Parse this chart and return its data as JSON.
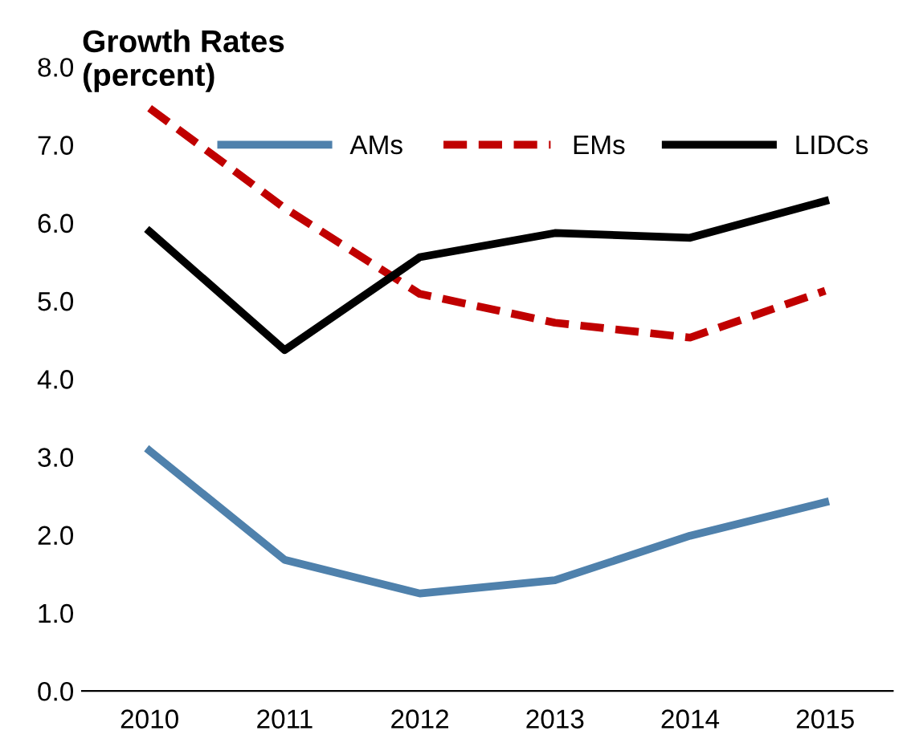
{
  "chart_data": {
    "type": "line",
    "title": "Growth Rates\n(percent)",
    "categories": [
      "2010",
      "2011",
      "2012",
      "2013",
      "2014",
      "2015"
    ],
    "series": [
      {
        "name": "AMs",
        "color": "#4f81ac",
        "values": [
          3.08,
          1.68,
          1.25,
          1.42,
          1.99,
          2.42
        ],
        "line_style": "solid"
      },
      {
        "name": "EMs",
        "color": "#c00000",
        "values": [
          7.47,
          6.19,
          5.09,
          4.72,
          4.53,
          5.13
        ],
        "line_style": "dashed"
      },
      {
        "name": "LIDCs",
        "color": "#000000",
        "values": [
          5.89,
          4.37,
          5.56,
          5.87,
          5.81,
          6.28
        ],
        "line_style": "solid"
      }
    ],
    "ylim": [
      0,
      8
    ],
    "yticks": [
      {
        "value": 0,
        "label": "0.0"
      },
      {
        "value": 1,
        "label": "1.0"
      },
      {
        "value": 2,
        "label": "2.0"
      },
      {
        "value": 3,
        "label": "3.0"
      },
      {
        "value": 4,
        "label": "4.0"
      },
      {
        "value": 5,
        "label": "5.0"
      },
      {
        "value": 6,
        "label": "6.0"
      },
      {
        "value": 7,
        "label": "7.0"
      },
      {
        "value": 8,
        "label": "8.0"
      }
    ],
    "grid": false,
    "legend": "top right",
    "marker": "none"
  }
}
